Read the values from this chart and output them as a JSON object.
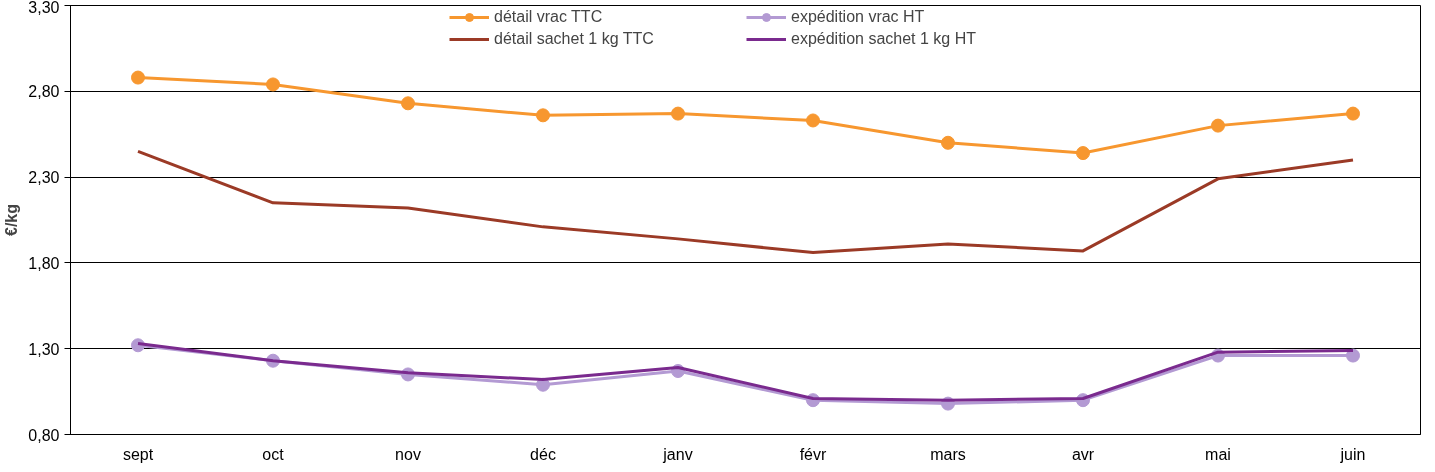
{
  "chart_data": {
    "type": "line",
    "ylabel": "€/kg",
    "categories": [
      "sept",
      "oct",
      "nov",
      "déc",
      "janv",
      "févr",
      "mars",
      "avr",
      "mai",
      "juin"
    ],
    "ylim": [
      0.8,
      3.3
    ],
    "yticks": [
      {
        "value": 0.8,
        "label": "0,80"
      },
      {
        "value": 1.3,
        "label": "1,30"
      },
      {
        "value": 1.8,
        "label": "1,80"
      },
      {
        "value": 2.3,
        "label": "2,30"
      },
      {
        "value": 2.8,
        "label": "2,80"
      },
      {
        "value": 3.3,
        "label": "3,30"
      }
    ],
    "grid": "y",
    "legend": "top",
    "series": [
      {
        "name": "détail vrac TTC",
        "color": "#f7972f",
        "marker": "circle",
        "values": [
          2.88,
          2.84,
          2.73,
          2.66,
          2.67,
          2.63,
          2.5,
          2.44,
          2.6,
          2.67
        ]
      },
      {
        "name": "détail sachet 1 kg TTC",
        "color": "#9b3a26",
        "marker": "none",
        "values": [
          2.45,
          2.15,
          2.12,
          2.01,
          1.94,
          1.86,
          1.91,
          1.87,
          2.29,
          2.4
        ]
      },
      {
        "name": "expédition vrac HT",
        "color": "#b39ad3",
        "marker": "circle",
        "values": [
          1.32,
          1.23,
          1.15,
          1.09,
          1.17,
          1.0,
          0.98,
          1.0,
          1.26,
          1.26
        ]
      },
      {
        "name": "expédition sachet 1 kg HT",
        "color": "#7a2a8e",
        "marker": "none",
        "values": [
          1.33,
          1.23,
          1.16,
          1.12,
          1.19,
          1.01,
          1.0,
          1.01,
          1.28,
          1.29
        ]
      }
    ]
  }
}
